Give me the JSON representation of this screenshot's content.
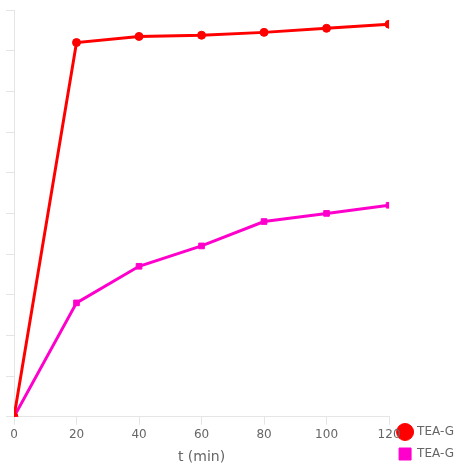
{
  "chart_data": {
    "type": "line",
    "x_label": "t (min)",
    "x": [
      0,
      20,
      40,
      60,
      80,
      100,
      120
    ],
    "series": [
      {
        "name": "TEA-G",
        "color": "#ff0000",
        "marker": "circle",
        "line_style": "solid",
        "values": [
          0,
          92,
          93.5,
          93.8,
          94.5,
          95.5,
          96.5
        ]
      },
      {
        "name": "TEA-G",
        "color": "#ff00cc",
        "marker": "square",
        "line_style": "solid",
        "values": [
          0,
          28,
          37,
          42,
          48,
          50,
          52
        ]
      }
    ],
    "xlim": [
      0,
      120
    ],
    "ylim": [
      0,
      100
    ],
    "xticks": [
      0,
      20,
      40,
      60,
      80,
      100,
      120
    ],
    "yticks": [
      0,
      10,
      20,
      30,
      40,
      50,
      60,
      70,
      80,
      90,
      100
    ],
    "tick_labels": "x",
    "grid": false,
    "legend": "lower right"
  }
}
